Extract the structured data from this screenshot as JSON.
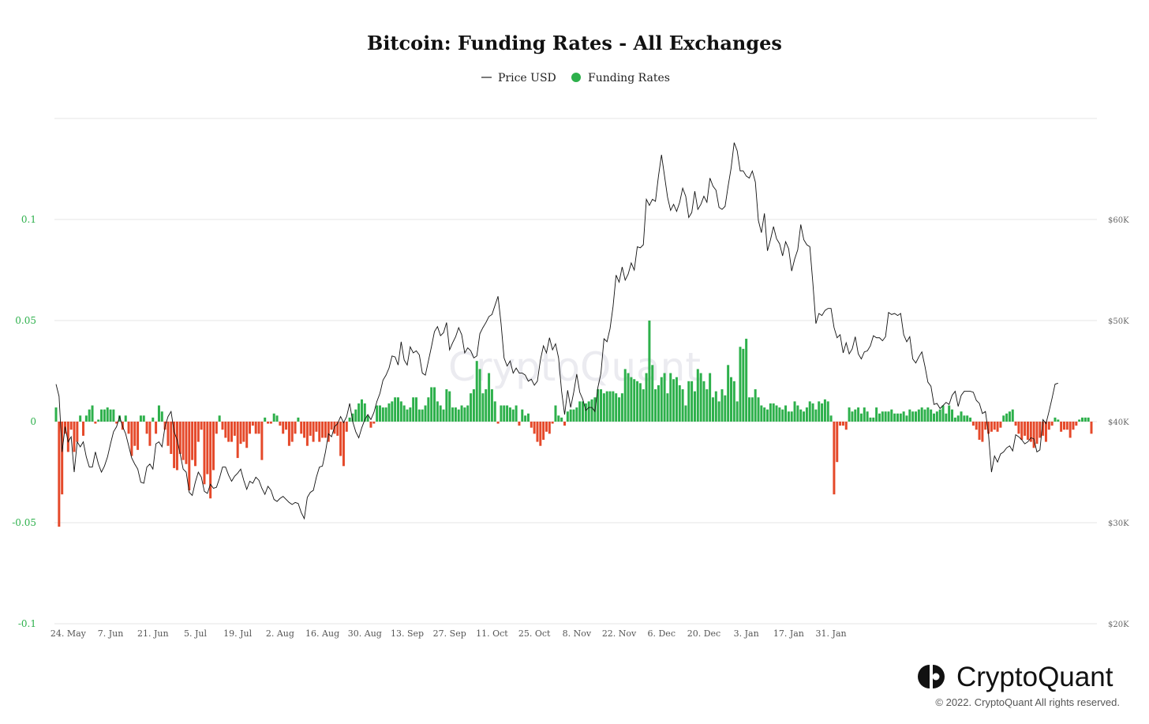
{
  "chart_data": {
    "type": "bar",
    "title": "Bitcoin: Funding Rates - All Exchanges",
    "legend": [
      {
        "label": "Price USD",
        "marker": "line",
        "color": "#222222"
      },
      {
        "label": "Funding Rates",
        "marker": "circle",
        "color": "#2db04b"
      }
    ],
    "legend_position": "top-center",
    "grid": true,
    "x_start": "2021-05-20",
    "x_tick_labels": [
      "24. May",
      "7. Jun",
      "21. Jun",
      "5. Jul",
      "19. Jul",
      "2. Aug",
      "16. Aug",
      "30. Aug",
      "13. Sep",
      "27. Sep",
      "11. Oct",
      "25. Oct",
      "8. Nov",
      "22. Nov",
      "6. Dec",
      "20. Dec",
      "3. Jan",
      "17. Jan",
      "31. Jan"
    ],
    "left_axis": {
      "ylim": [
        -0.1,
        0.15
      ],
      "ticks": [
        0.1,
        0.05,
        0,
        -0.05,
        -0.1
      ],
      "tick_labels": [
        "0.1",
        "0.05",
        "0",
        "-0.05",
        "-0.1"
      ]
    },
    "right_axis": {
      "ylim": [
        20000,
        70000
      ],
      "ticks": [
        60000,
        50000,
        40000,
        30000,
        20000
      ],
      "tick_labels": [
        "$60K",
        "$50K",
        "$40K",
        "$30K",
        "$20K"
      ]
    },
    "positive_color": "#2db04b",
    "negative_color": "#e5492a",
    "series": [
      {
        "name": "Funding Rates",
        "axis": "left",
        "values": [
          0.007,
          -0.052,
          -0.036,
          -0.006,
          -0.015,
          -0.004,
          -0.015,
          -0.01,
          0.003,
          -0.007,
          0.003,
          0.006,
          0.008,
          -0.001,
          0.001,
          0.006,
          0.006,
          0.007,
          0.006,
          0.006,
          -0.001,
          0.003,
          -0.004,
          0.003,
          -0.006,
          -0.017,
          -0.012,
          -0.014,
          0.003,
          0.003,
          -0.006,
          -0.012,
          0.002,
          -0.006,
          0.008,
          0.005,
          -0.004,
          -0.012,
          -0.016,
          -0.023,
          -0.024,
          -0.016,
          -0.019,
          -0.021,
          -0.034,
          -0.019,
          -0.022,
          -0.01,
          -0.004,
          -0.031,
          -0.026,
          -0.038,
          -0.024,
          -0.006,
          0.003,
          -0.004,
          -0.008,
          -0.01,
          -0.01,
          -0.007,
          -0.018,
          -0.011,
          -0.01,
          -0.013,
          -0.006,
          -0.002,
          -0.006,
          -0.006,
          -0.019,
          0.002,
          -0.001,
          -0.001,
          0.004,
          0.003,
          -0.002,
          -0.006,
          -0.004,
          -0.012,
          -0.01,
          -0.006,
          0.002,
          -0.006,
          -0.008,
          -0.012,
          -0.007,
          -0.01,
          -0.005,
          -0.01,
          -0.008,
          -0.008,
          -0.01,
          -0.004,
          -0.006,
          -0.007,
          -0.017,
          -0.022,
          -0.005,
          0.002,
          0.004,
          0.006,
          0.009,
          0.011,
          0.009,
          0.003,
          -0.003,
          -0.001,
          0.008,
          0.008,
          0.007,
          0.007,
          0.009,
          0.01,
          0.012,
          0.012,
          0.01,
          0.008,
          0.006,
          0.007,
          0.012,
          0.012,
          0.006,
          0.006,
          0.008,
          0.012,
          0.017,
          0.017,
          0.01,
          0.008,
          0.006,
          0.016,
          0.015,
          0.007,
          0.007,
          0.006,
          0.008,
          0.007,
          0.008,
          0.014,
          0.016,
          0.03,
          0.026,
          0.014,
          0.016,
          0.024,
          0.016,
          0.01,
          -0.001,
          0.008,
          0.008,
          0.008,
          0.007,
          0.006,
          0.008,
          -0.002,
          0.006,
          0.003,
          0.004,
          -0.003,
          -0.006,
          -0.01,
          -0.012,
          -0.009,
          -0.005,
          -0.006,
          -0.001,
          0.008,
          0.003,
          0.002,
          -0.002,
          0.005,
          0.006,
          0.006,
          0.007,
          0.01,
          0.01,
          0.009,
          0.01,
          0.011,
          0.012,
          0.016,
          0.016,
          0.014,
          0.015,
          0.015,
          0.015,
          0.014,
          0.012,
          0.014,
          0.026,
          0.024,
          0.022,
          0.021,
          0.02,
          0.019,
          0.016,
          0.024,
          0.05,
          0.028,
          0.016,
          0.018,
          0.022,
          0.024,
          0.014,
          0.024,
          0.021,
          0.022,
          0.018,
          0.016,
          0.008,
          0.02,
          0.02,
          0.015,
          0.026,
          0.024,
          0.02,
          0.016,
          0.024,
          0.012,
          0.015,
          0.01,
          0.016,
          0.013,
          0.028,
          0.022,
          0.02,
          0.01,
          0.037,
          0.036,
          0.041,
          0.012,
          0.012,
          0.016,
          0.012,
          0.008,
          0.007,
          0.006,
          0.009,
          0.009,
          0.008,
          0.007,
          0.006,
          0.008,
          0.005,
          0.005,
          0.01,
          0.008,
          0.006,
          0.005,
          0.007,
          0.01,
          0.009,
          0.006,
          0.01,
          0.009,
          0.011,
          0.01,
          0.003,
          -0.036,
          -0.02,
          -0.002,
          -0.002,
          -0.004,
          0.007,
          0.005,
          0.006,
          0.007,
          0.004,
          0.007,
          0.005,
          0.002,
          0.002,
          0.007,
          0.004,
          0.005,
          0.005,
          0.005,
          0.006,
          0.004,
          0.004,
          0.004,
          0.005,
          0.003,
          0.006,
          0.005,
          0.005,
          0.006,
          0.007,
          0.006,
          0.007,
          0.006,
          0.004,
          0.005,
          0.006,
          0.008,
          0.004,
          0.008,
          0.006,
          0.002,
          0.003,
          0.005,
          0.003,
          0.003,
          0.002,
          -0.002,
          -0.004,
          -0.009,
          -0.01,
          -0.004,
          -0.006,
          -0.005,
          -0.004,
          -0.005,
          -0.003,
          0.003,
          0.004,
          0.005,
          0.006,
          -0.002,
          -0.006,
          -0.009,
          -0.007,
          -0.009,
          -0.01,
          -0.013,
          -0.011,
          -0.008,
          -0.007,
          -0.01,
          -0.004,
          -0.002,
          0.002,
          0.001,
          -0.005,
          -0.004,
          -0.004,
          -0.008,
          -0.004,
          -0.002,
          0.001,
          0.002,
          0.002,
          0.002,
          -0.006
        ]
      },
      {
        "name": "Price USD",
        "axis": "right",
        "values": [
          43700,
          42500,
          37000,
          39500,
          38000,
          38500,
          35000,
          38000,
          37500,
          38000,
          36500,
          35500,
          35500,
          37000,
          35800,
          35000,
          35600,
          36500,
          37800,
          39000,
          39500,
          40500,
          39500,
          38800,
          37600,
          36400,
          35800,
          35300,
          34000,
          33900,
          35500,
          35800,
          35300,
          37800,
          38000,
          37500,
          39500,
          40500,
          41000,
          39000,
          38200,
          36800,
          35300,
          35000,
          33000,
          32700,
          34000,
          35000,
          34500,
          33100,
          32900,
          33800,
          33400,
          33500,
          34400,
          35500,
          35500,
          34700,
          34100,
          34600,
          34900,
          35300,
          34200,
          33300,
          34100,
          33900,
          34500,
          34200,
          33400,
          32800,
          33600,
          33200,
          32300,
          32100,
          32400,
          32600,
          32300,
          32000,
          31800,
          32000,
          31900,
          31000,
          30400,
          32500,
          33000,
          33200,
          34500,
          35500,
          35600,
          37000,
          38800,
          38500,
          39500,
          39800,
          40500,
          39900,
          40500,
          41800,
          40000,
          39000,
          38400,
          39400,
          40200,
          40700,
          40200,
          40900,
          42000,
          42800,
          44100,
          44600,
          45300,
          46500,
          46400,
          45600,
          47900,
          46100,
          45600,
          47400,
          46800,
          47000,
          46600,
          44800,
          44600,
          46000,
          47400,
          48900,
          49400,
          48500,
          48800,
          49800,
          47100,
          47800,
          48400,
          49300,
          48600,
          46800,
          47300,
          47000,
          46300,
          46500,
          48700,
          49300,
          49800,
          50400,
          50600,
          51500,
          52400,
          49700,
          46300,
          45500,
          46000,
          44800,
          45300,
          44800,
          44800,
          44600,
          44000,
          44200,
          43600,
          44000,
          46100,
          47500,
          46800,
          48300,
          47100,
          47700,
          46300,
          43000,
          40700,
          43100,
          41400,
          42900,
          44700,
          42900,
          42200,
          41100,
          41400,
          41400,
          41000,
          43400,
          44800,
          48200,
          47900,
          49200,
          51400,
          54500,
          53800,
          55300,
          54000,
          54600,
          55700,
          55000,
          57300,
          57200,
          57500,
          62000,
          61400,
          62000,
          61800,
          64300,
          66400,
          64300,
          62200,
          60900,
          61500,
          60800,
          61700,
          63100,
          62300,
          60200,
          60700,
          62800,
          61000,
          61500,
          62300,
          61700,
          64100,
          63300,
          62900,
          61200,
          61000,
          61300,
          63300,
          65100,
          67600,
          66800,
          64800,
          64800,
          64300,
          64100,
          64800,
          63700,
          59900,
          58700,
          60600,
          56900,
          58000,
          59300,
          58100,
          57600,
          56400,
          57800,
          57100,
          54900,
          56100,
          57000,
          59500,
          58000,
          57500,
          57300,
          53700,
          49700,
          50700,
          50500,
          51000,
          51200,
          51200,
          49300,
          48300,
          48600,
          46800,
          47800,
          46700,
          47200,
          48400,
          46700,
          46200,
          46900,
          47000,
          47500,
          48500,
          48300,
          48300,
          48000,
          48400,
          50800,
          50600,
          50700,
          50500,
          50700,
          48600,
          47900,
          48400,
          46200,
          45800,
          46400,
          46900,
          45500,
          43900,
          43500,
          41700,
          41800,
          41300,
          41600,
          41900,
          41700,
          42600,
          43000,
          41500,
          42600,
          43000,
          43000,
          43000,
          42900,
          42100,
          41800,
          40800,
          41000,
          38800,
          35000,
          36600,
          36000,
          36800,
          37000,
          37400,
          37600,
          37100,
          38700,
          38500,
          38200,
          37800,
          38000,
          38400,
          38300,
          37000,
          37200,
          40200,
          39800,
          41000,
          42300,
          43700,
          43800
        ]
      }
    ],
    "watermark": "CryptoQuant",
    "brand": "CryptoQuant",
    "copyright": "© 2022. CryptoQuant All rights reserved."
  }
}
